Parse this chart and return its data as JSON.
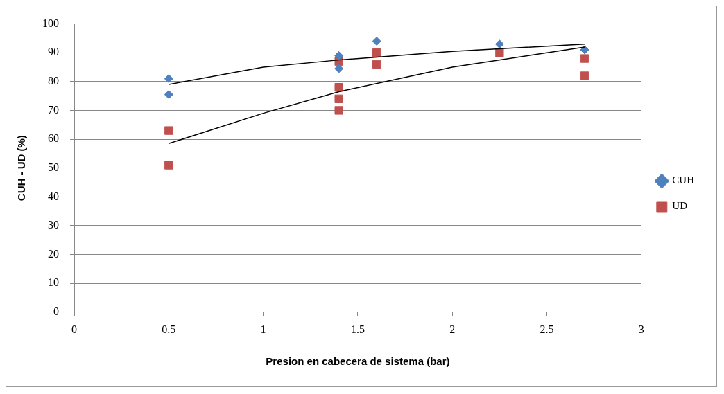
{
  "chart_data": {
    "type": "scatter",
    "xlabel": "Presion en cabecera de sistema (bar)",
    "ylabel": "CUH - UD (%)",
    "xlim": [
      0,
      3
    ],
    "xticks": [
      0,
      0.5,
      1,
      1.5,
      2,
      2.5,
      3
    ],
    "ylim": [
      0,
      100
    ],
    "yticks": [
      0,
      10,
      20,
      30,
      40,
      50,
      60,
      70,
      80,
      90,
      100
    ],
    "grid": "y",
    "legend": "right",
    "series": [
      {
        "name": "CUH",
        "color": "#4f81bd",
        "marker": "diamond",
        "x": [
          0.5,
          0.5,
          1.4,
          1.4,
          1.6,
          2.25,
          2.7
        ],
        "values": [
          81,
          75.5,
          89,
          84.5,
          94,
          93,
          91
        ]
      },
      {
        "name": "UD",
        "color": "#c0504d",
        "marker": "square",
        "x": [
          0.5,
          0.5,
          1.4,
          1.4,
          1.4,
          1.4,
          1.6,
          1.6,
          2.25,
          2.7,
          2.7
        ],
        "values": [
          63,
          51,
          87,
          78,
          74,
          70,
          90,
          86,
          90,
          88,
          82
        ]
      },
      {
        "type": "line",
        "color": "#000000",
        "marker": "none",
        "x": [
          0.5,
          1,
          1.4,
          2,
          2.7
        ],
        "values": [
          79,
          85,
          87.5,
          90.5,
          93
        ]
      },
      {
        "type": "line",
        "color": "#000000",
        "marker": "none",
        "x": [
          0.5,
          1,
          1.4,
          2,
          2.7
        ],
        "values": [
          58.5,
          69,
          76.5,
          85,
          92
        ]
      }
    ]
  }
}
